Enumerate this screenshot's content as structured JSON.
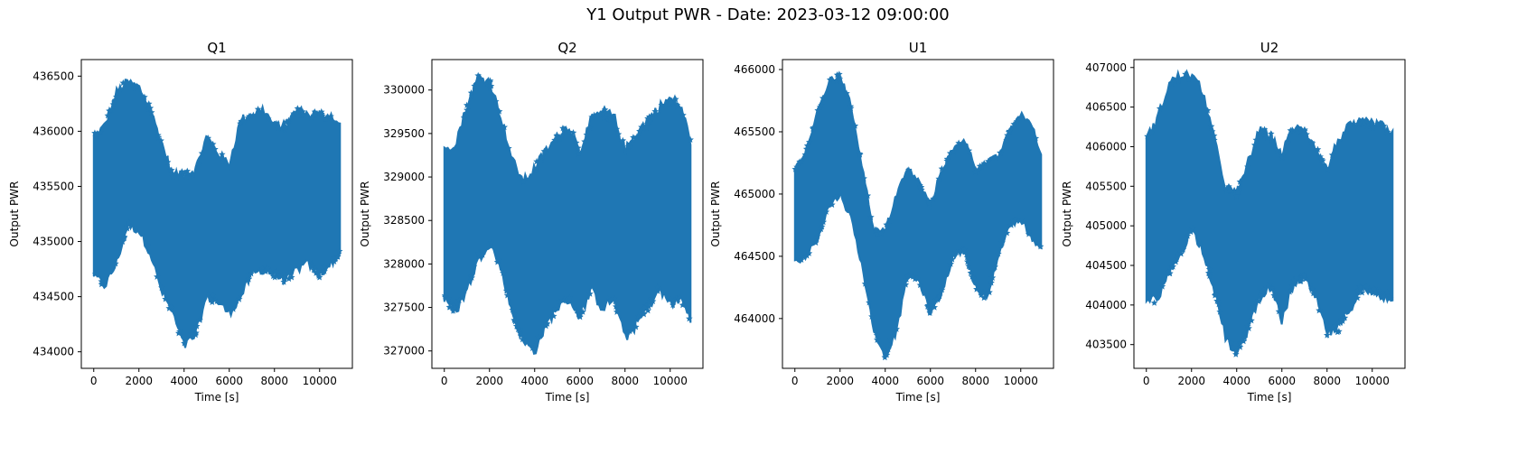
{
  "figure": {
    "suptitle": "Y1 Output PWR - Date: 2023-03-12 09:00:00"
  },
  "chart_data": [
    {
      "type": "scatter",
      "title": "Q1",
      "xlabel": "Time [s]",
      "ylabel": "Output PWR",
      "marker": "*",
      "color": "#1f77b4",
      "xlim": [
        -550,
        11450
      ],
      "ylim": [
        433850,
        436650
      ],
      "xticks": [
        0,
        2000,
        4000,
        6000,
        8000,
        10000
      ],
      "yticks": [
        434000,
        434500,
        435000,
        435500,
        436000,
        436500
      ],
      "envelope": {
        "x": [
          0,
          500,
          1000,
          1500,
          2000,
          2500,
          3000,
          3500,
          4000,
          4500,
          5000,
          5500,
          6000,
          6500,
          7000,
          7500,
          8000,
          8500,
          9000,
          9500,
          10000,
          10500,
          10900
        ],
        "upper": [
          435950,
          436050,
          436350,
          436450,
          436400,
          436200,
          435900,
          435600,
          435620,
          435650,
          435950,
          435800,
          435700,
          436100,
          436150,
          436200,
          436050,
          436050,
          436200,
          436150,
          436150,
          436150,
          436050
        ],
        "lower": [
          434700,
          434600,
          434800,
          435150,
          435100,
          434900,
          434550,
          434350,
          434050,
          434150,
          434500,
          434450,
          434350,
          434500,
          434700,
          434750,
          434700,
          434650,
          434750,
          434800,
          434700,
          434800,
          434900
        ]
      }
    },
    {
      "type": "scatter",
      "title": "Q2",
      "xlabel": "Time [s]",
      "ylabel": "Output PWR",
      "marker": "*",
      "color": "#1f77b4",
      "xlim": [
        -550,
        11450
      ],
      "ylim": [
        326800,
        330350
      ],
      "xticks": [
        0,
        2000,
        4000,
        6000,
        8000,
        10000
      ],
      "yticks": [
        327000,
        327500,
        328000,
        328500,
        329000,
        329500,
        330000
      ],
      "envelope": {
        "x": [
          0,
          500,
          1000,
          1500,
          2000,
          2500,
          3000,
          3500,
          4000,
          4500,
          5000,
          5500,
          6000,
          6500,
          7000,
          7500,
          8000,
          8500,
          9000,
          9500,
          10000,
          10500,
          10900
        ],
        "upper": [
          329300,
          329400,
          329800,
          330150,
          330100,
          329700,
          329200,
          328950,
          329100,
          329300,
          329450,
          329600,
          329300,
          329650,
          329750,
          329700,
          329300,
          329500,
          329650,
          329800,
          329900,
          329800,
          329400
        ],
        "lower": [
          327600,
          327450,
          327700,
          328050,
          328250,
          327950,
          327450,
          327100,
          327000,
          327300,
          327500,
          327600,
          327400,
          327700,
          327500,
          327600,
          327150,
          327300,
          327500,
          327700,
          327550,
          327600,
          327350
        ]
      }
    },
    {
      "type": "scatter",
      "title": "U1",
      "xlabel": "Time [s]",
      "ylabel": "Output PWR",
      "marker": "*",
      "color": "#1f77b4",
      "xlim": [
        -550,
        11450
      ],
      "ylim": [
        463600,
        466080
      ],
      "xticks": [
        0,
        2000,
        4000,
        6000,
        8000,
        10000
      ],
      "yticks": [
        464000,
        464500,
        465000,
        465500,
        466000
      ],
      "envelope": {
        "x": [
          0,
          500,
          1000,
          1500,
          2000,
          2500,
          3000,
          3500,
          4000,
          4500,
          5000,
          5500,
          6000,
          6500,
          7000,
          7500,
          8000,
          8500,
          9000,
          9500,
          10000,
          10500,
          10900
        ],
        "upper": [
          465200,
          465350,
          465650,
          465900,
          465950,
          465700,
          465200,
          464700,
          464700,
          465000,
          465200,
          465100,
          464900,
          465200,
          465350,
          465450,
          465200,
          465250,
          465300,
          465500,
          465650,
          465550,
          465300
        ],
        "lower": [
          464450,
          464500,
          464650,
          464900,
          465000,
          464800,
          464400,
          463900,
          463700,
          463900,
          464350,
          464300,
          464050,
          464200,
          464500,
          464550,
          464250,
          464150,
          464500,
          464750,
          464800,
          464650,
          464550
        ]
      }
    },
    {
      "type": "scatter",
      "title": "U2",
      "xlabel": "Time [s]",
      "ylabel": "Output PWR",
      "marker": "*",
      "color": "#1f77b4",
      "xlim": [
        -550,
        11450
      ],
      "ylim": [
        403200,
        407100
      ],
      "xticks": [
        0,
        2000,
        4000,
        6000,
        8000,
        10000
      ],
      "yticks": [
        403500,
        404000,
        404500,
        405000,
        405500,
        406000,
        406500,
        407000
      ],
      "envelope": {
        "x": [
          0,
          500,
          1000,
          1500,
          2000,
          2500,
          3000,
          3500,
          4000,
          4500,
          5000,
          5500,
          6000,
          6500,
          7000,
          7500,
          8000,
          8500,
          9000,
          9500,
          10000,
          10500,
          10900
        ],
        "upper": [
          406100,
          406350,
          406800,
          406900,
          406900,
          406700,
          406100,
          405500,
          405400,
          405800,
          406200,
          406150,
          405900,
          406250,
          406200,
          406000,
          405700,
          406100,
          406250,
          406300,
          406300,
          406250,
          406150
        ],
        "lower": [
          404100,
          404050,
          404400,
          404650,
          404950,
          404700,
          404200,
          403600,
          403350,
          403700,
          404100,
          404250,
          403800,
          404250,
          404350,
          404100,
          403650,
          403700,
          403950,
          404200,
          404150,
          404100,
          404100
        ]
      }
    }
  ]
}
